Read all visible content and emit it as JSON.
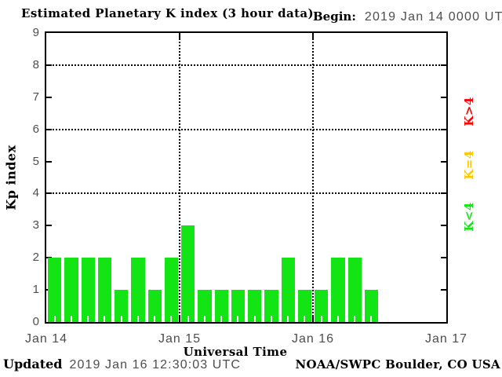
{
  "header": {
    "title": "Estimated Planetary K index (3 hour data)",
    "begin_label": "Begin:",
    "begin_value": "2019 Jan 14 0000 UTC"
  },
  "footer": {
    "updated_label": "Updated",
    "updated_value": "2019 Jan 16 12:30:03 UTC",
    "source": "NOAA/SWPC Boulder, CO USA"
  },
  "legend": {
    "items": [
      {
        "label": "K>4",
        "color": "#ff0000"
      },
      {
        "label": "K=4",
        "color": "#ffc800"
      },
      {
        "label": "K<4",
        "color": "#13e413"
      }
    ]
  },
  "chart_data": {
    "type": "bar",
    "title": "Estimated Planetary K index (3 hour data)",
    "xlabel": "Universal Time",
    "ylabel": "Kp index",
    "ylim": [
      0,
      9
    ],
    "yticks": [
      0,
      1,
      2,
      3,
      4,
      5,
      6,
      7,
      8,
      9
    ],
    "grid_y": [
      4,
      6,
      8
    ],
    "grid_style": "dotted",
    "legend_position": "right",
    "bar_color": "#13e413",
    "hours_per_bar": 3,
    "days": 3,
    "x_day_labels": [
      "Jan 14",
      "Jan 15",
      "Jan 16",
      "Jan 17"
    ],
    "series": [
      {
        "day": "Jan 14",
        "values": [
          2,
          2,
          2,
          2,
          1,
          2,
          1,
          2
        ]
      },
      {
        "day": "Jan 15",
        "values": [
          3,
          1,
          1,
          1,
          1,
          1,
          2,
          1
        ]
      },
      {
        "day": "Jan 16",
        "values": [
          1,
          2,
          2,
          1
        ]
      }
    ]
  }
}
